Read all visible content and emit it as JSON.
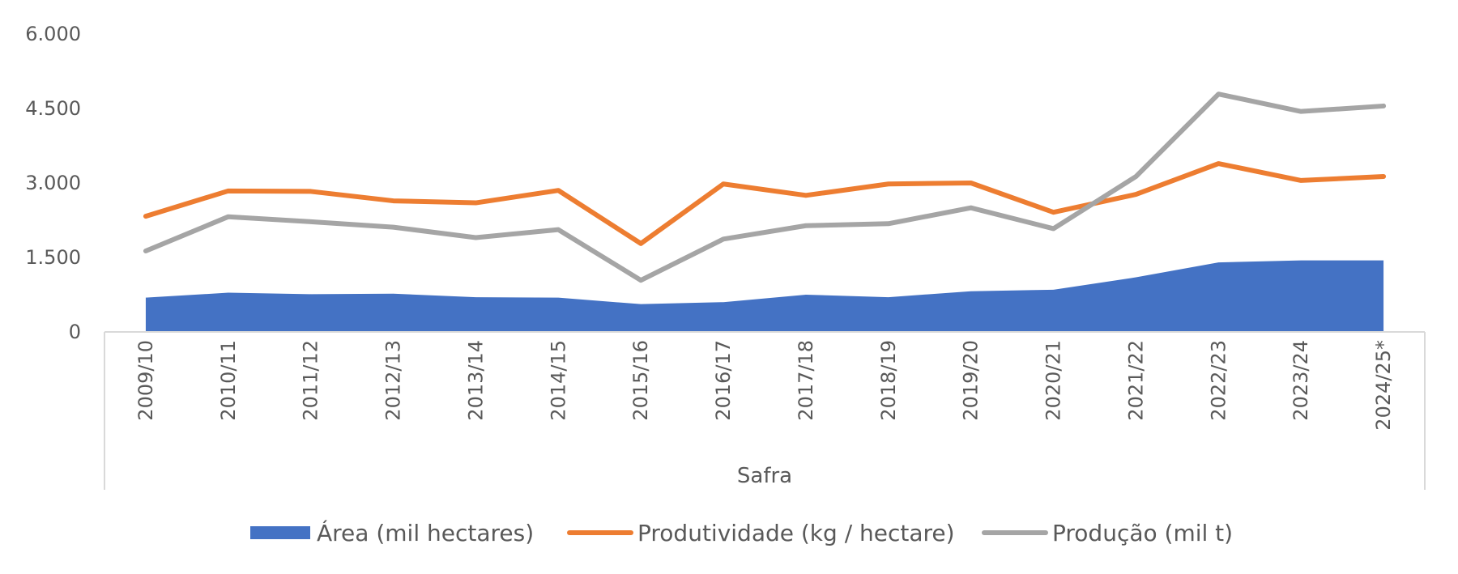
{
  "chart_data": {
    "type": "line",
    "title": "",
    "xlabel": "Safra",
    "ylabel": "",
    "ylim": [
      0,
      6000
    ],
    "yticks": [
      0,
      1500,
      3000,
      4500,
      6000
    ],
    "ytick_labels": [
      "0",
      "1.500",
      "3.000",
      "4.500",
      "6.000"
    ],
    "categories": [
      "2009/10",
      "2010/11",
      "2011/12",
      "2012/13",
      "2013/14",
      "2014/15",
      "2015/16",
      "2016/17",
      "2017/18",
      "2018/19",
      "2019/20",
      "2020/21",
      "2021/22",
      "2022/23",
      "2023/24",
      "2024/25*"
    ],
    "legend_position": "bottom",
    "series": [
      {
        "name": "Área (mil hectares)",
        "kind": "area",
        "color": "#4472C4",
        "values": [
          690,
          790,
          760,
          770,
          700,
          690,
          560,
          600,
          750,
          700,
          820,
          850,
          1100,
          1400,
          1440,
          1440
        ]
      },
      {
        "name": "Produtividade (kg / hectare)",
        "kind": "line",
        "color": "#ED7D31",
        "values": [
          2330,
          2840,
          2830,
          2640,
          2600,
          2850,
          1780,
          2980,
          2750,
          2980,
          3000,
          2410,
          2770,
          3390,
          3050,
          3130
        ]
      },
      {
        "name": "Produção (mil t)",
        "kind": "line",
        "color": "#A5A5A5",
        "values": [
          1630,
          2320,
          2220,
          2110,
          1900,
          2060,
          1040,
          1870,
          2140,
          2180,
          2500,
          2080,
          3130,
          4790,
          4440,
          4550
        ]
      }
    ]
  }
}
